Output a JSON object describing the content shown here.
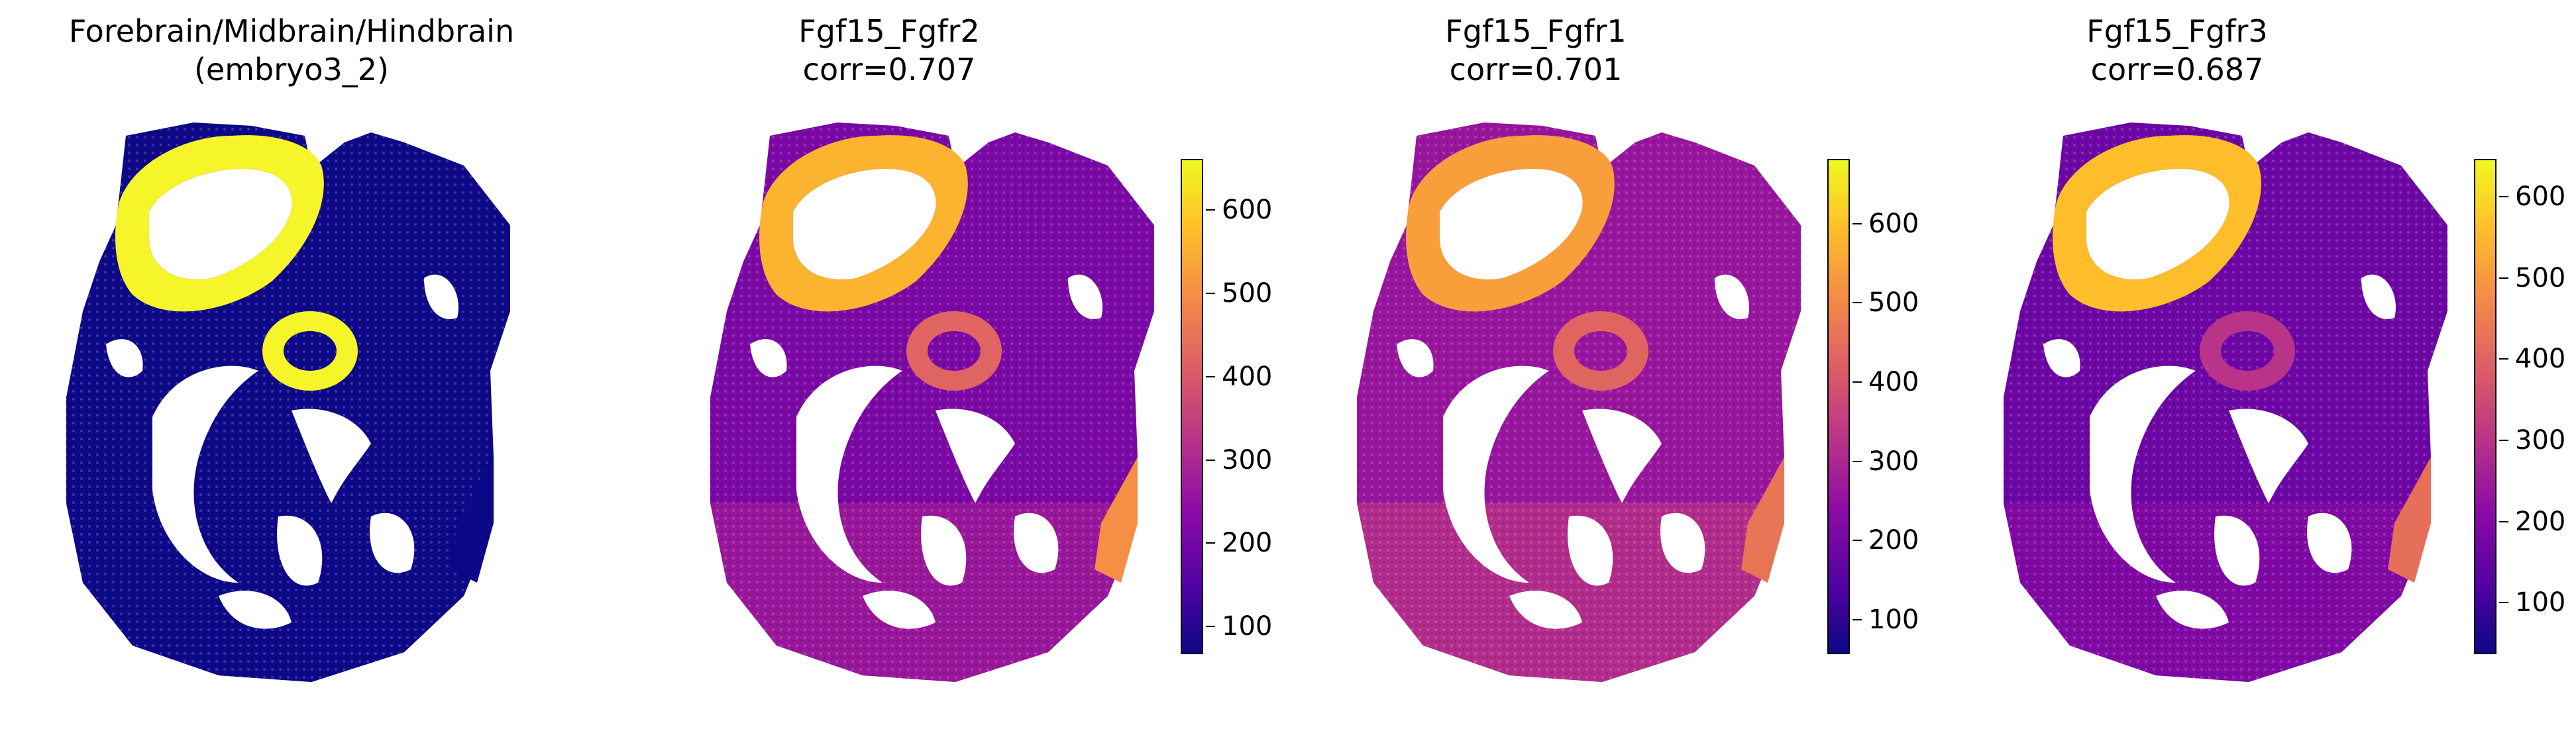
{
  "chart_data": [
    {
      "type": "scatter",
      "title": "Forebrain/Midbrain/Hindbrain\n(embryo3_2)",
      "kind": "categorical",
      "colors": {
        "background_cells": "#0d0887",
        "highlight_cells": "#f5f52a"
      }
    },
    {
      "type": "scatter",
      "title": "Fgf15_Fgfr2\ncorr=0.707",
      "colormap": "plasma",
      "colorbar": {
        "min": 65,
        "max": 660,
        "ticks": [
          100,
          200,
          300,
          400,
          500,
          600
        ]
      },
      "regional_values": {
        "forebrain_loop": 560,
        "midbrain_ring": 420,
        "lower_right_tip": 500,
        "body": 210,
        "lower_body": 270
      }
    },
    {
      "type": "scatter",
      "title": "Fgf15_Fgfr1\ncorr=0.701",
      "colormap": "plasma",
      "colorbar": {
        "min": 55,
        "max": 680,
        "ticks": [
          100,
          200,
          300,
          400,
          500,
          600
        ]
      },
      "regional_values": {
        "forebrain_loop": 540,
        "midbrain_ring": 430,
        "lower_right_tip": 460,
        "body": 260,
        "lower_body": 320
      }
    },
    {
      "type": "scatter",
      "title": "Fgf15_Fgfr3\ncorr=0.687",
      "colormap": "plasma",
      "colorbar": {
        "min": 35,
        "max": 645,
        "ticks": [
          100,
          200,
          300,
          400,
          500,
          600
        ]
      },
      "regional_values": {
        "forebrain_loop": 560,
        "midbrain_ring": 300,
        "lower_right_tip": 420,
        "body": 160,
        "lower_body": 200
      }
    }
  ]
}
